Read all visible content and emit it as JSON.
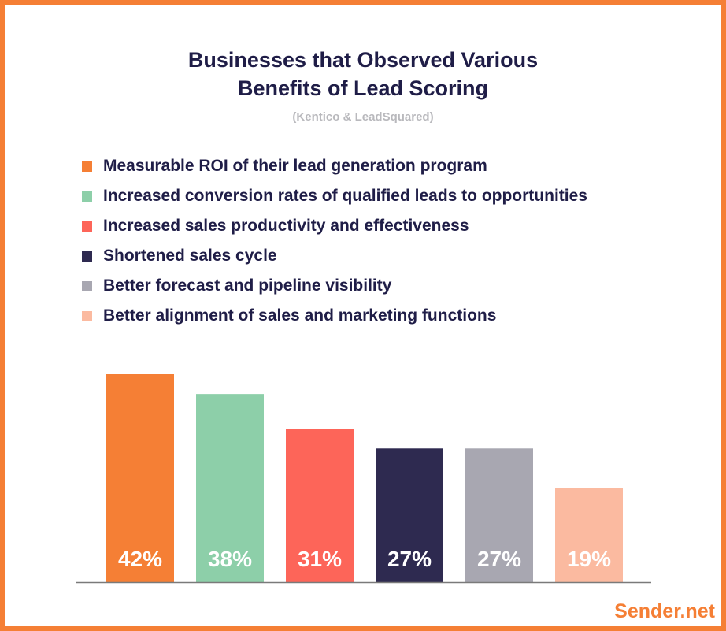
{
  "chart_data": {
    "type": "bar",
    "title_lines": [
      "Businesses that Observed Various",
      "Benefits of Lead Scoring"
    ],
    "subtitle": "(Kentico & LeadSquared)",
    "categories": [
      "Measurable ROI of their lead generation program",
      "Increased conversion rates of qualified leads to opportunities",
      "Increased sales productivity and effectiveness",
      "Shortened sales cycle",
      "Better forecast and pipeline visibility",
      "Better alignment of sales and marketing functions"
    ],
    "values": [
      42,
      38,
      31,
      27,
      27,
      19
    ],
    "value_labels": [
      "42%",
      "38%",
      "31%",
      "27%",
      "27%",
      "19%"
    ],
    "colors": [
      "#f57f35",
      "#8dcfa9",
      "#fd6559",
      "#2e2a50",
      "#a8a7b1",
      "#fbbaa0"
    ],
    "xlabel": "",
    "ylabel": "",
    "ylim": [
      0,
      50
    ],
    "grid": false,
    "legend": "top"
  },
  "brand": "Sender.net"
}
